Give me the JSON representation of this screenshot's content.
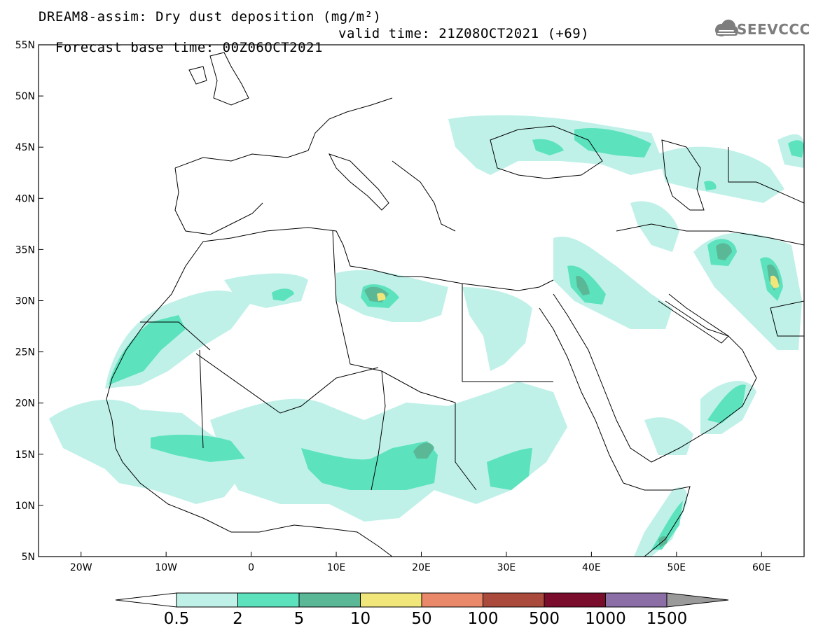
{
  "header": {
    "line1": "DREAM8-assim: Dry dust deposition (mg/m²)",
    "line2_base": "Forecast base time: 00Z06OCT2021",
    "line2_valid": "valid time: 21Z08OCT2021 (+69)"
  },
  "logo": {
    "icon": "cloud-icon",
    "text": "SEEVCCC",
    "color": "#7d7d7d"
  },
  "map": {
    "lon_range": [
      -25,
      65
    ],
    "lat_range": [
      5,
      55
    ],
    "lon_ticks": [
      {
        "value": -20,
        "label": "20W"
      },
      {
        "value": -10,
        "label": "10W"
      },
      {
        "value": 0,
        "label": "0"
      },
      {
        "value": 10,
        "label": "10E"
      },
      {
        "value": 20,
        "label": "20E"
      },
      {
        "value": 30,
        "label": "30E"
      },
      {
        "value": 40,
        "label": "40E"
      },
      {
        "value": 50,
        "label": "50E"
      },
      {
        "value": 60,
        "label": "60E"
      }
    ],
    "lat_ticks": [
      {
        "value": 55,
        "label": "55N"
      },
      {
        "value": 50,
        "label": "50N"
      },
      {
        "value": 45,
        "label": "45N"
      },
      {
        "value": 40,
        "label": "40N"
      },
      {
        "value": 35,
        "label": "35N"
      },
      {
        "value": 30,
        "label": "30N"
      },
      {
        "value": 25,
        "label": "25N"
      },
      {
        "value": 20,
        "label": "20N"
      },
      {
        "value": 15,
        "label": "15N"
      },
      {
        "value": 10,
        "label": "10N"
      },
      {
        "value": 5,
        "label": "5N"
      }
    ]
  },
  "colorbar": {
    "levels": [
      "0.5",
      "2",
      "5",
      "10",
      "50",
      "100",
      "500",
      "1000",
      "1500"
    ],
    "colors": [
      "#bff1e9",
      "#5ce3be",
      "#5bb897",
      "#f1e67a",
      "#e9896a",
      "#a94a3d",
      "#7a0c2c",
      "#8b6ea6",
      "#9a9a9a"
    ],
    "under_color": "#ffffff"
  }
}
